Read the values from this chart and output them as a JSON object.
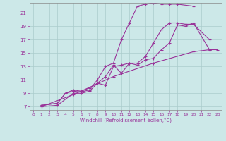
{
  "bg_color": "#cce8e8",
  "grid_color": "#aacccc",
  "line_color": "#993399",
  "xlabel": "Windchill (Refroidissement éolien,°C)",
  "xlim": [
    -0.5,
    23.5
  ],
  "ylim": [
    6.5,
    22.5
  ],
  "xticks": [
    0,
    1,
    2,
    3,
    4,
    5,
    6,
    7,
    8,
    9,
    10,
    11,
    12,
    13,
    14,
    15,
    16,
    17,
    18,
    19,
    20,
    21,
    22,
    23
  ],
  "yticks": [
    7,
    9,
    11,
    13,
    15,
    17,
    19,
    21
  ],
  "line1_x": [
    1,
    3,
    4,
    5,
    6,
    7,
    8,
    9,
    10,
    11,
    12,
    13,
    14,
    15,
    16,
    17,
    18,
    20
  ],
  "line1_y": [
    7.2,
    7.5,
    9.0,
    9.3,
    9.2,
    9.5,
    11.0,
    13.0,
    13.5,
    17.0,
    19.5,
    22.0,
    22.3,
    22.5,
    22.3,
    22.3,
    22.3,
    22.0
  ],
  "line2_x": [
    1,
    3,
    4,
    5,
    6,
    7,
    8,
    9,
    10,
    11,
    12,
    13,
    14,
    15,
    16,
    17,
    18,
    19,
    20,
    22
  ],
  "line2_y": [
    7.2,
    7.5,
    9.0,
    9.5,
    9.3,
    9.8,
    10.5,
    10.2,
    13.0,
    13.2,
    13.5,
    13.5,
    14.5,
    16.5,
    18.5,
    19.5,
    19.5,
    19.3,
    19.3,
    17.0
  ],
  "line3_x": [
    1,
    3,
    5,
    6,
    7,
    8,
    9,
    10,
    11,
    12,
    13,
    14,
    15,
    16,
    17,
    18,
    19,
    20,
    22
  ],
  "line3_y": [
    7.0,
    7.2,
    9.0,
    9.0,
    9.3,
    10.5,
    11.5,
    13.2,
    12.0,
    13.5,
    13.2,
    14.0,
    14.2,
    15.5,
    16.5,
    19.2,
    19.0,
    19.5,
    15.5
  ],
  "line4_x": [
    1,
    5,
    10,
    15,
    20,
    22,
    23
  ],
  "line4_y": [
    7.0,
    8.8,
    11.5,
    13.5,
    15.2,
    15.5,
    15.5
  ]
}
